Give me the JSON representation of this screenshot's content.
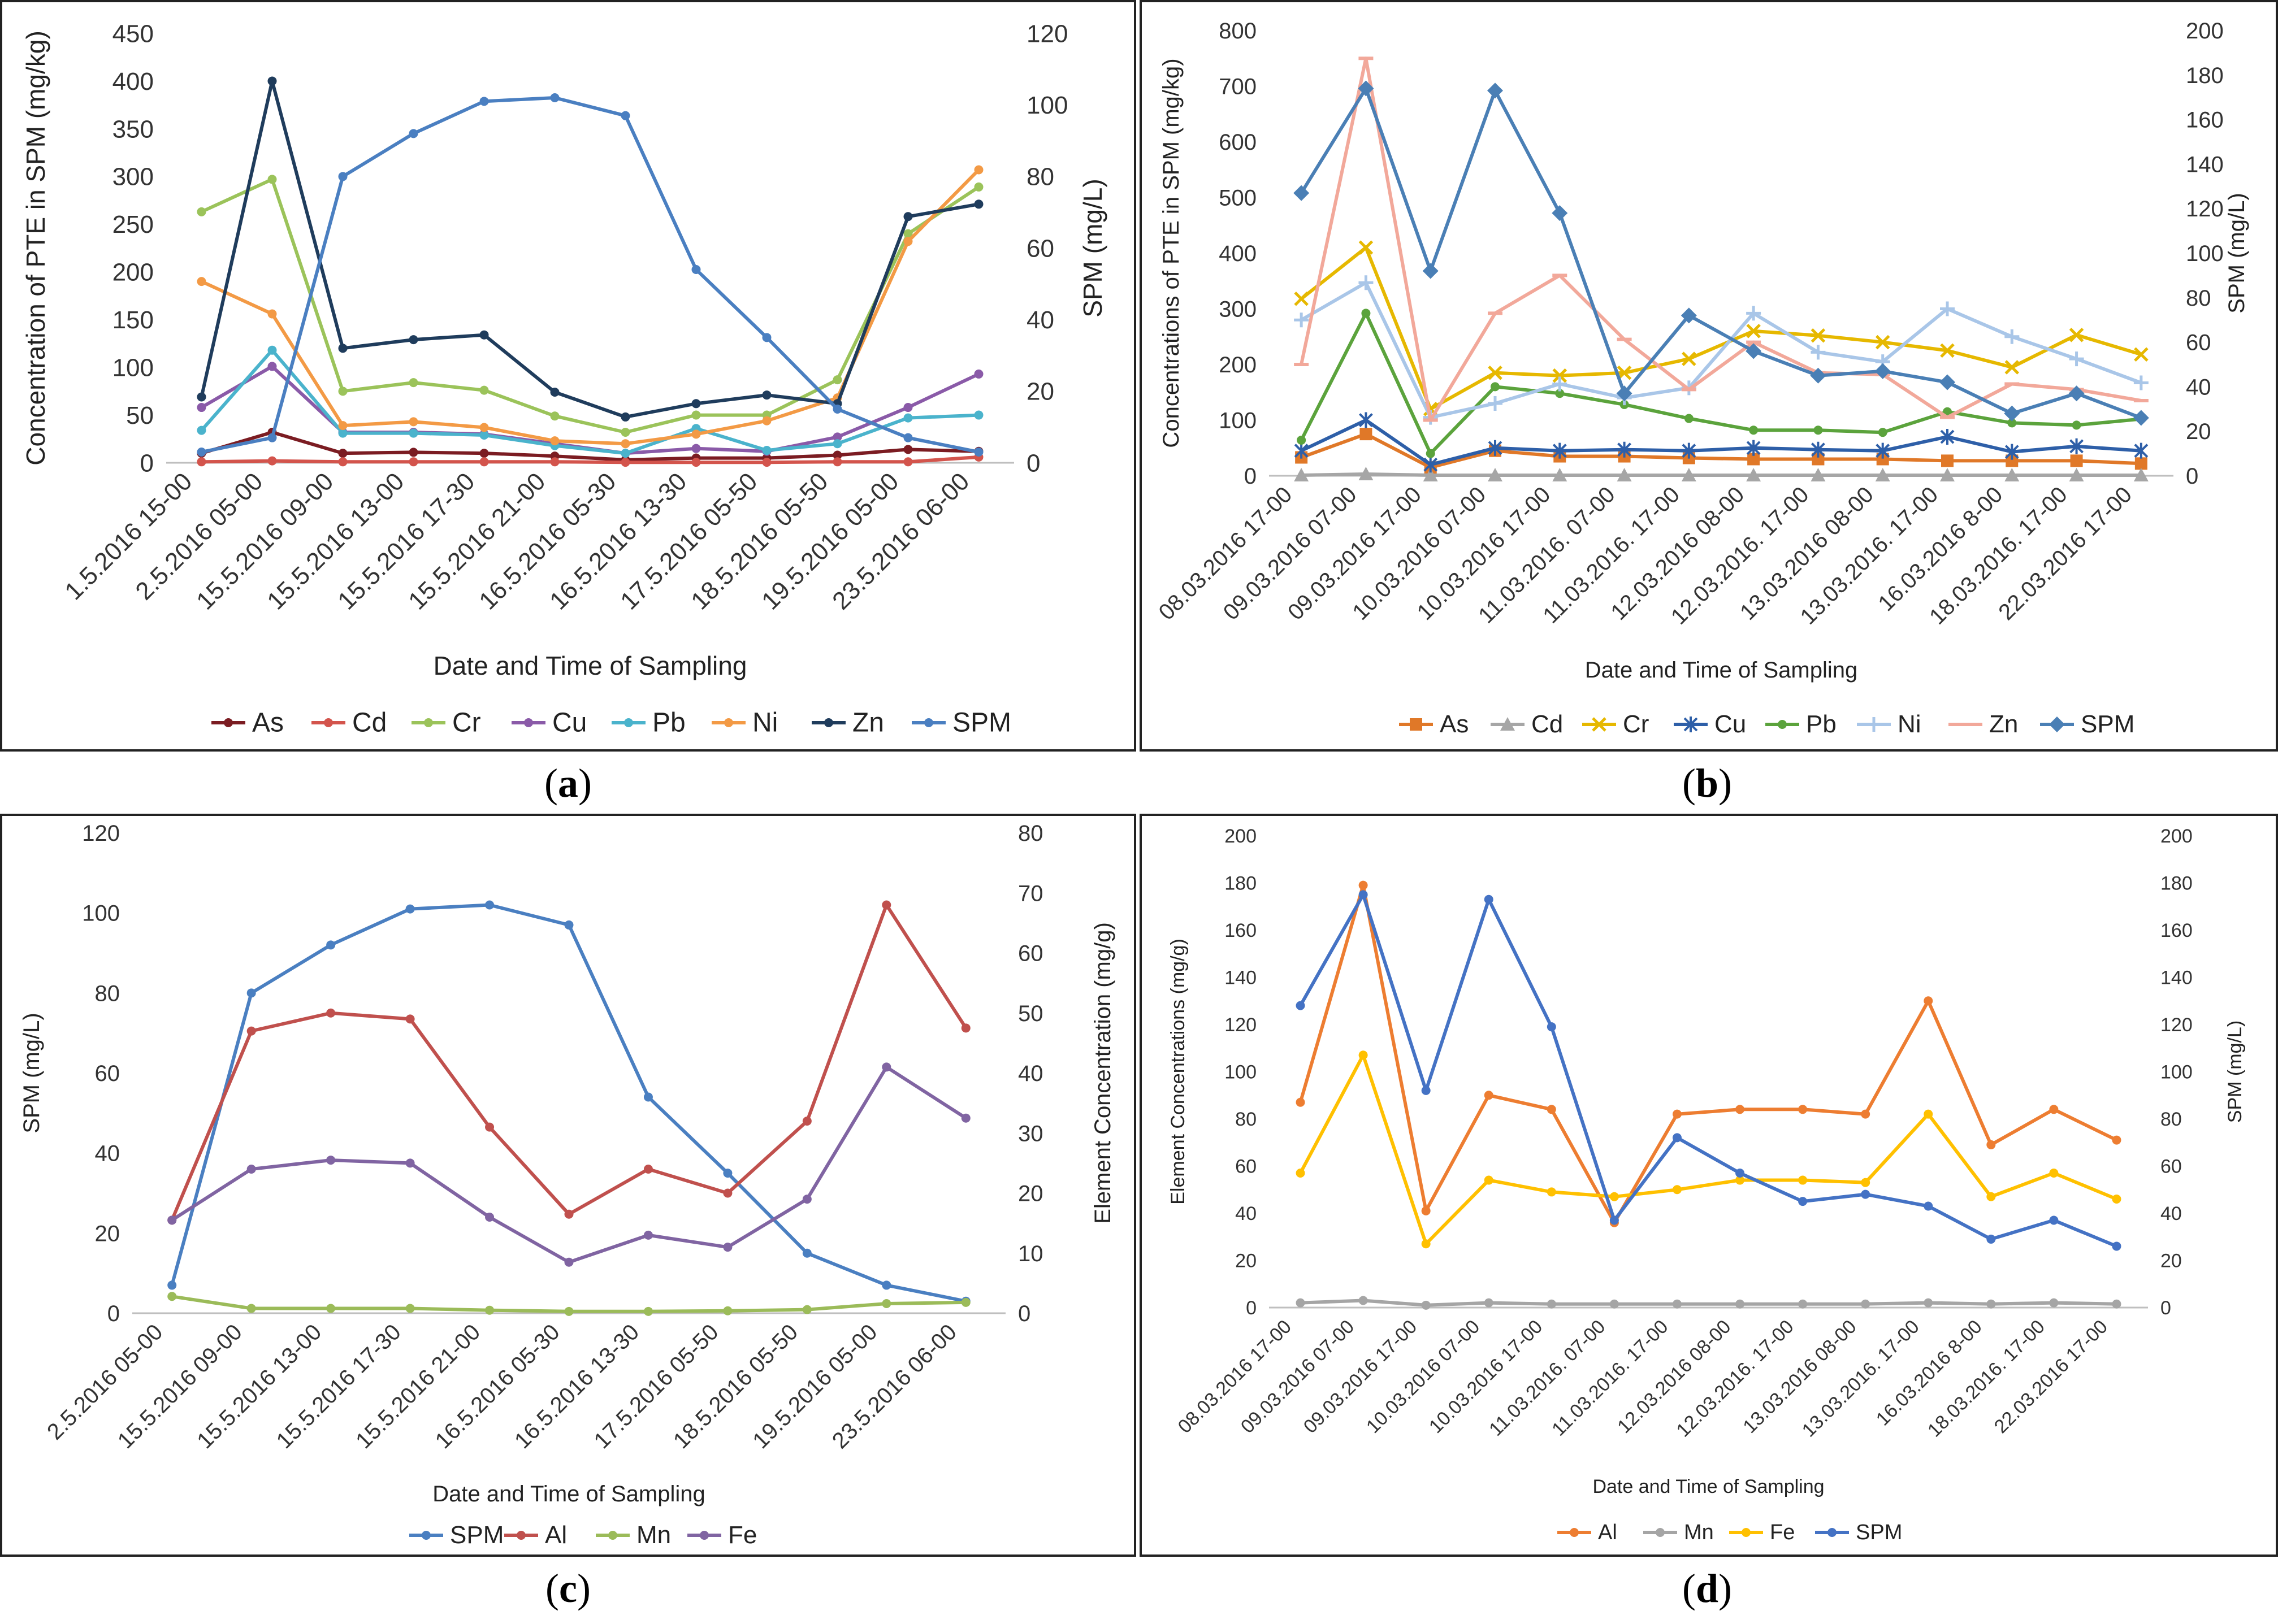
{
  "panel_labels": [
    "a",
    "b",
    "c",
    "d"
  ],
  "chart_data": [
    {
      "id": "a",
      "type": "line",
      "title": "",
      "xlabel": "Date and Time of Sampling",
      "ylabel": "Concentration of PTE in SPM (mg/kg)",
      "y2label": "SPM (mg/L)",
      "ylim": [
        0,
        450
      ],
      "ystep": 50,
      "y2lim": [
        0,
        120
      ],
      "y2step": 20,
      "legend_position": "bottom",
      "categories": [
        "1.5.2016 15-00",
        "2.5.2016 05-00",
        "15.5.2016 09-00",
        "15.5.2016 13-00",
        "15.5.2016 17-30",
        "15.5.2016 21-00",
        "16.5.2016 05-30",
        "16.5.2016 13-30",
        "17.5.2016 05-50",
        "18.5.2016 05-50",
        "19.5.2016 05-00",
        "23.5.2016 06-00"
      ],
      "series": [
        {
          "name": "As",
          "color": "#7b1c22",
          "marker": "circle",
          "axis": "left",
          "values": [
            10,
            32,
            10,
            11,
            10,
            7,
            3,
            5,
            5,
            8,
            14,
            12
          ]
        },
        {
          "name": "Cd",
          "color": "#d3544c",
          "marker": "circle",
          "axis": "left",
          "values": [
            1,
            2,
            1,
            1,
            1,
            1,
            0.5,
            0.5,
            0.5,
            1,
            1,
            6
          ]
        },
        {
          "name": "Cr",
          "color": "#9bc35a",
          "marker": "circle",
          "axis": "left",
          "values": [
            263,
            297,
            75,
            84,
            76,
            49,
            32,
            50,
            50,
            87,
            240,
            289
          ]
        },
        {
          "name": "Cu",
          "color": "#8a5aa8",
          "marker": "circle",
          "axis": "left",
          "values": [
            58,
            101,
            32,
            32,
            30,
            20,
            10,
            15,
            12,
            27,
            58,
            93
          ]
        },
        {
          "name": "Pb",
          "color": "#4ab3cc",
          "marker": "circle",
          "axis": "left",
          "values": [
            34,
            118,
            31,
            31,
            29,
            18,
            10,
            36,
            13,
            20,
            47,
            50
          ]
        },
        {
          "name": "Ni",
          "color": "#f39a45",
          "marker": "circle",
          "axis": "left",
          "values": [
            190,
            156,
            39,
            43,
            37,
            23,
            20,
            30,
            44,
            68,
            232,
            307
          ]
        },
        {
          "name": "Zn",
          "color": "#1f3c5c",
          "marker": "circle",
          "axis": "left",
          "values": [
            69,
            400,
            120,
            129,
            134,
            74,
            48,
            62,
            71,
            62,
            258,
            271
          ]
        },
        {
          "name": "SPM",
          "color": "#4a7fc1",
          "marker": "circle",
          "axis": "right",
          "values": [
            3,
            7,
            80,
            92,
            101,
            102,
            97,
            54,
            35,
            15,
            7,
            3
          ]
        }
      ]
    },
    {
      "id": "b",
      "type": "line",
      "title": "",
      "xlabel": "Date and Time of Sampling",
      "ylabel": "Concentrations of PTE in SPM (mg/kg)",
      "y2label": "SPM (mg/L)",
      "ylim": [
        0,
        800
      ],
      "ystep": 100,
      "y2lim": [
        0,
        200
      ],
      "y2step": 20,
      "legend_position": "bottom",
      "categories": [
        "08.03.2016 17-00",
        "09.03.2016 07-00",
        "09.03.2016 17-00",
        "10.03.2016 07-00",
        "10.03.2016 17-00",
        "11.03.2016. 07-00",
        "11.03.2016. 17-00",
        "12.03.2016 08-00",
        "12.03.2016. 17-00",
        "13.03.2016 08-00",
        "13.03.2016. 17-00",
        "16.03.2016 8-00",
        "18.03.2016. 17-00",
        "22.03.2016 17-00"
      ],
      "series": [
        {
          "name": "As",
          "color": "#e07828",
          "marker": "square",
          "axis": "left",
          "values": [
            33,
            75,
            15,
            45,
            35,
            35,
            32,
            30,
            30,
            30,
            27,
            27,
            27,
            22
          ]
        },
        {
          "name": "Cd",
          "color": "#a6a6a6",
          "marker": "triangle",
          "axis": "left",
          "values": [
            1,
            3,
            1,
            1,
            1,
            1,
            1,
            1,
            1,
            1,
            1,
            1,
            1,
            1
          ]
        },
        {
          "name": "Cr",
          "color": "#e6b800",
          "marker": "x",
          "axis": "left",
          "values": [
            318,
            410,
            120,
            185,
            180,
            185,
            210,
            260,
            252,
            240,
            225,
            195,
            253,
            218
          ]
        },
        {
          "name": "Cu",
          "color": "#2e5fa8",
          "marker": "star",
          "axis": "left",
          "values": [
            45,
            100,
            20,
            50,
            45,
            47,
            45,
            50,
            47,
            45,
            70,
            43,
            53,
            45
          ]
        },
        {
          "name": "Pb",
          "color": "#5ba33c",
          "marker": "circle",
          "axis": "left",
          "values": [
            64,
            292,
            40,
            160,
            148,
            128,
            103,
            82,
            82,
            78,
            115,
            95,
            91,
            102
          ]
        },
        {
          "name": "Ni",
          "color": "#a9c6e8",
          "marker": "plus",
          "axis": "left",
          "values": [
            280,
            347,
            105,
            130,
            165,
            140,
            158,
            292,
            222,
            205,
            300,
            250,
            210,
            167
          ]
        },
        {
          "name": "Zn",
          "color": "#f2a89a",
          "marker": "dash",
          "axis": "left",
          "values": [
            200,
            750,
            100,
            292,
            360,
            245,
            155,
            240,
            185,
            182,
            105,
            165,
            155,
            135
          ]
        },
        {
          "name": "SPM",
          "color": "#4a7fb5",
          "marker": "diamond",
          "axis": "right",
          "values": [
            127,
            174,
            92,
            173,
            118,
            37,
            72,
            56,
            45,
            47,
            42,
            28,
            37,
            26
          ]
        }
      ]
    },
    {
      "id": "c",
      "type": "line",
      "title": "",
      "xlabel": "Date and Time of Sampling",
      "ylabel": "SPM (mg/L)",
      "y2label": "Element Concentration  (mg/g)",
      "ylim": [
        0,
        120
      ],
      "ystep": 20,
      "y2lim": [
        0,
        80
      ],
      "y2step": 10,
      "legend_position": "bottom",
      "categories": [
        "2.5.2016 05-00",
        "15.5.2016 09-00",
        "15.5.2016 13-00",
        "15.5.2016 17-30",
        "15.5.2016 21-00",
        "16.5.2016 05-30",
        "16.5.2016 13-30",
        "17.5.2016 05-50",
        "18.5.2016 05-50",
        "19.5.2016 05-00",
        "23.5.2016 06-00"
      ],
      "series": [
        {
          "name": "SPM",
          "color": "#4a7fc1",
          "marker": "circle",
          "axis": "left",
          "values": [
            7,
            80,
            92,
            101,
            102,
            97,
            54,
            35,
            15,
            7,
            3
          ]
        },
        {
          "name": "Al",
          "color": "#c0504d",
          "marker": "circle",
          "axis": "right",
          "values": [
            15.5,
            47,
            50,
            49,
            31,
            16.5,
            24,
            20,
            32,
            68,
            47.5
          ]
        },
        {
          "name": "Mn",
          "color": "#9bbb59",
          "marker": "circle",
          "axis": "right",
          "values": [
            2.8,
            0.8,
            0.8,
            0.8,
            0.5,
            0.3,
            0.3,
            0.4,
            0.6,
            1.6,
            1.8
          ]
        },
        {
          "name": "Fe",
          "color": "#8064a2",
          "marker": "circle",
          "axis": "right",
          "values": [
            15.5,
            24,
            25.5,
            25,
            16,
            8.5,
            13,
            11,
            19,
            41,
            32.5
          ]
        }
      ]
    },
    {
      "id": "d",
      "type": "line",
      "title": "",
      "xlabel": "Date and Time of Sampling",
      "ylabel": "Element Concentrations (mg/g)",
      "y2label": "SPM (mg/L)",
      "ylim": [
        0,
        200
      ],
      "ystep": 20,
      "y2lim": [
        0,
        200
      ],
      "y2step": 20,
      "legend_position": "bottom",
      "categories": [
        "08.03.2016 17-00",
        "09.03.2016 07-00",
        "09.03.2016 17-00",
        "10.03.2016 07-00",
        "10.03.2016 17-00",
        "11.03.2016. 07-00",
        "11.03.2016. 17-00",
        "12.03.2016 08-00",
        "12.03.2016. 17-00",
        "13.03.2016 08-00",
        "13.03.2016. 17-00",
        "16.03.2016 8-00",
        "18.03.2016. 17-00",
        "22.03.2016 17-00"
      ],
      "series": [
        {
          "name": "Al",
          "color": "#ed7d31",
          "marker": "circle",
          "axis": "left",
          "values": [
            87,
            179,
            41,
            90,
            84,
            36,
            82,
            84,
            84,
            82,
            130,
            69,
            84,
            71
          ]
        },
        {
          "name": "Mn",
          "color": "#a5a5a5",
          "marker": "circle",
          "axis": "left",
          "values": [
            2,
            3,
            1,
            2,
            1.5,
            1.5,
            1.5,
            1.5,
            1.5,
            1.5,
            2,
            1.5,
            2,
            1.5
          ]
        },
        {
          "name": "Fe",
          "color": "#ffc000",
          "marker": "circle",
          "axis": "left",
          "values": [
            57,
            107,
            27,
            54,
            49,
            47,
            50,
            54,
            54,
            53,
            82,
            47,
            57,
            46
          ]
        },
        {
          "name": "SPM",
          "color": "#4472c4",
          "marker": "circle",
          "axis": "right",
          "values": [
            128,
            175,
            92,
            173,
            119,
            37,
            72,
            57,
            45,
            48,
            43,
            29,
            37,
            26
          ]
        }
      ]
    }
  ]
}
